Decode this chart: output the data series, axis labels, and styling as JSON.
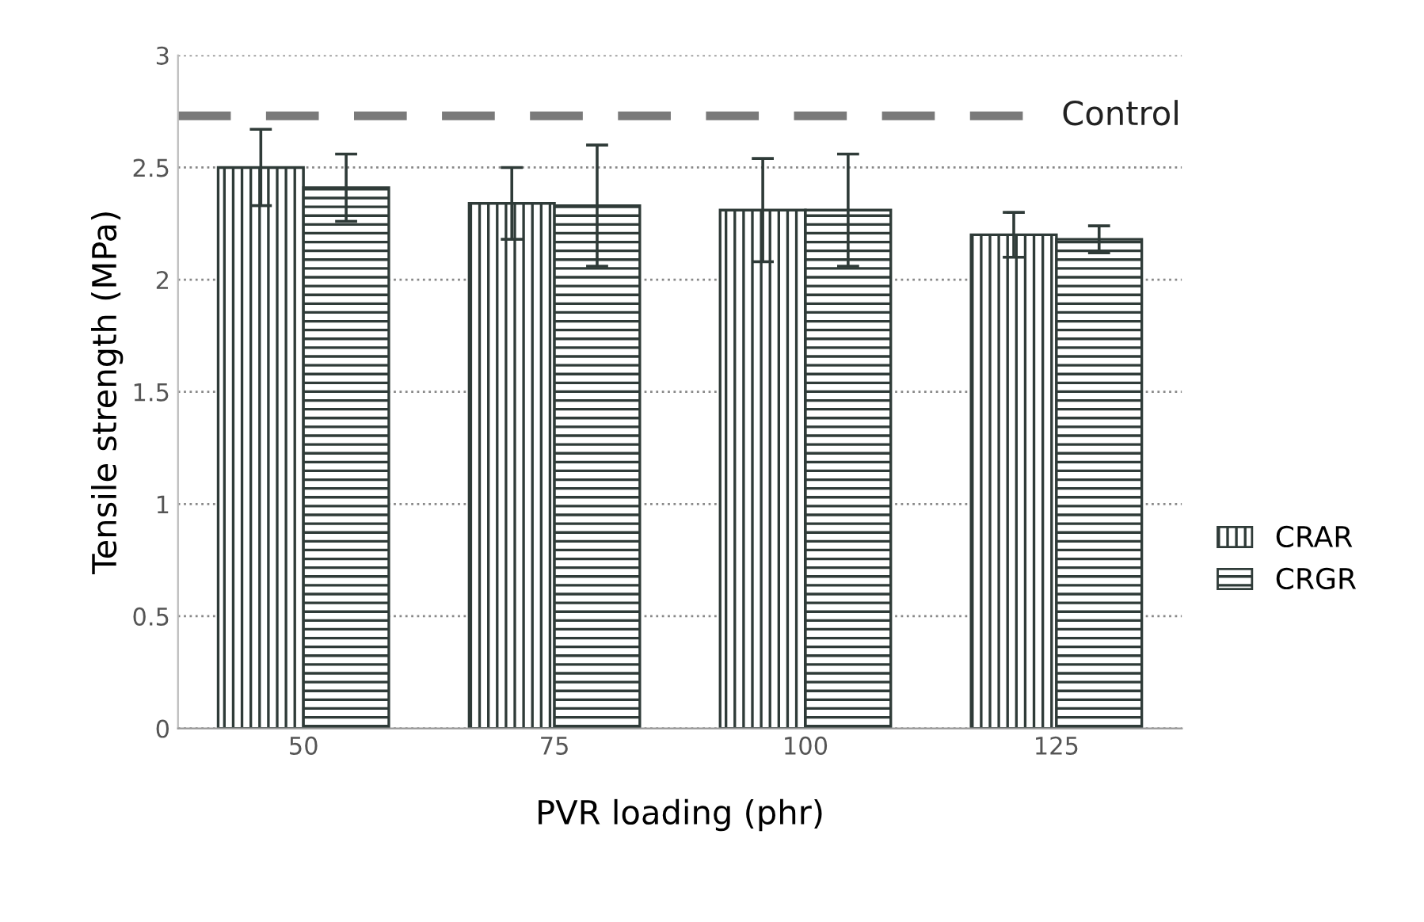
{
  "chart_data": {
    "type": "bar",
    "xlabel": "PVR loading (phr)",
    "ylabel": "Tensile strength (MPa)",
    "categories": [
      "50",
      "75",
      "100",
      "125"
    ],
    "series": [
      {
        "name": "CRAR",
        "color": "#2f3b38",
        "values": [
          2.5,
          2.34,
          2.31,
          2.2
        ],
        "errors": [
          0.17,
          0.16,
          0.23,
          0.1
        ]
      },
      {
        "name": "CRGR",
        "color": "#2f3b38",
        "values": [
          2.41,
          2.33,
          2.31,
          2.18
        ],
        "errors": [
          0.15,
          0.27,
          0.25,
          0.06
        ]
      }
    ],
    "ylim": [
      0,
      3
    ],
    "yticks": [
      0,
      0.5,
      1,
      1.5,
      2,
      2.5,
      3
    ],
    "grid": "y",
    "legend": "right",
    "ref_lines": [
      {
        "axis": "y",
        "value": 2.73,
        "label": "Control",
        "color": "#7a7a7a",
        "line_style": "dashed"
      }
    ]
  }
}
